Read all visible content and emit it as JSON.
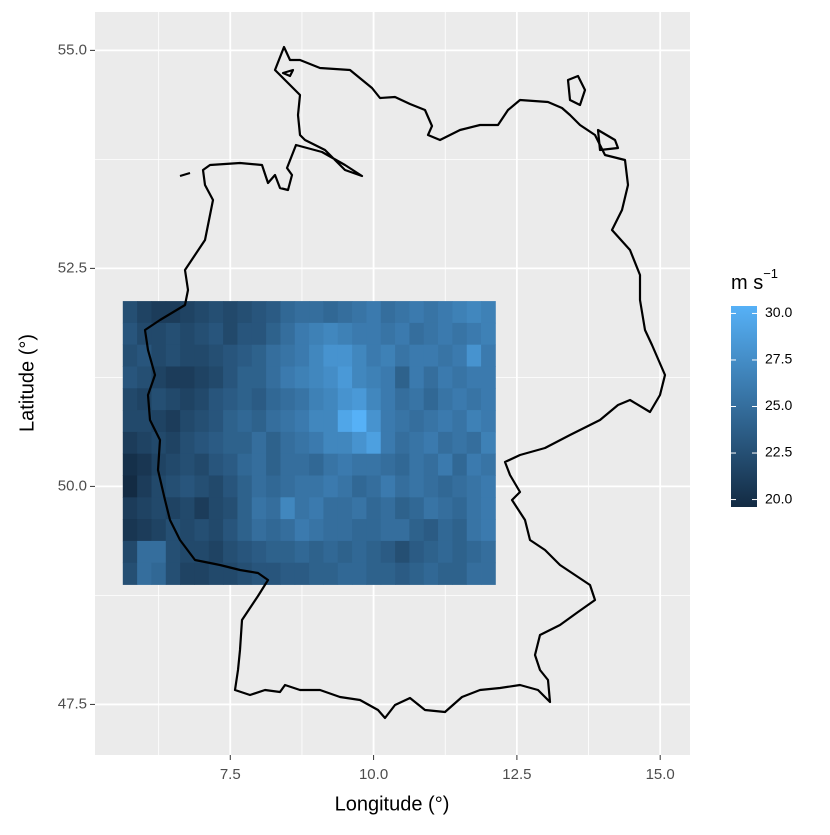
{
  "chart_data": {
    "type": "heatmap",
    "x_label": "Longitude (°)",
    "y_label": "Latitude (°)",
    "legend_title": {
      "base": "m s",
      "sup": "−1"
    },
    "xlim": [
      5.14,
      15.52
    ],
    "ylim": [
      46.92,
      55.44
    ],
    "xticks": [
      7.5,
      {
        "value": 10,
        "label": "10.0"
      },
      12.5,
      {
        "value": 15,
        "label": "15.0"
      }
    ],
    "yticks": [
      47.5,
      {
        "value": 50,
        "label": "50.0"
      },
      52.5,
      {
        "value": 55,
        "label": "55.0"
      }
    ],
    "grid": true,
    "low_color": "#132B43",
    "high_color": "#56B1F7",
    "fill_limits": [
      19.6,
      30.4
    ],
    "fill_ticks": [
      {
        "value": 20,
        "label": "20.0"
      },
      22.5,
      {
        "value": 25,
        "label": "25.0"
      },
      27.5,
      {
        "value": 30,
        "label": "30.0"
      }
    ],
    "x": [
      5.75,
      6.0,
      6.25,
      6.5,
      6.75,
      7.0,
      7.25,
      7.5,
      7.75,
      8.0,
      8.25,
      8.5,
      8.75,
      9.0,
      9.25,
      9.5,
      9.75,
      10.0,
      10.25,
      10.5,
      10.75,
      11.0,
      11.25,
      11.5,
      11.75,
      12.0
    ],
    "y": [
      52.0,
      51.75,
      51.5,
      51.25,
      51.0,
      50.75,
      50.5,
      50.25,
      50.0,
      49.75,
      49.5,
      49.25,
      49.0
    ],
    "z": [
      [
        22.5,
        21.5,
        21,
        21,
        21.5,
        22,
        22.5,
        22,
        22.5,
        23,
        23.5,
        24.5,
        25,
        25,
        24.5,
        25,
        25.5,
        26,
        25,
        25.5,
        26,
        25.5,
        26,
        26.5,
        27,
        26.5
      ],
      [
        23,
        22,
        22,
        22.5,
        22,
        22.5,
        23,
        22,
        23,
        23,
        24,
        25,
        26,
        26.5,
        27,
        26.5,
        26,
        26,
        25.5,
        26,
        25,
        25.5,
        26,
        25.5,
        26,
        26.5
      ],
      [
        22.5,
        23,
        22,
        22.5,
        22,
        22,
        22.5,
        23,
        23.5,
        24,
        25,
        25.5,
        26,
        27,
        28,
        28,
        27,
        26,
        26.5,
        25.5,
        26,
        26,
        25.5,
        26,
        28,
        26
      ],
      [
        23,
        22.5,
        21.5,
        21,
        21,
        21.5,
        22,
        23,
        24,
        24,
        25,
        26,
        26.5,
        27,
        27.5,
        28.5,
        27,
        26.5,
        26,
        24,
        26,
        25,
        26,
        25.5,
        26,
        26
      ],
      [
        22,
        21.5,
        22.5,
        22,
        21.5,
        22,
        23,
        23.5,
        24,
        23.5,
        24.5,
        25,
        25.5,
        26.5,
        27,
        28,
        28.5,
        27,
        26,
        25,
        25.5,
        24.5,
        25.5,
        26,
        25.5,
        26
      ],
      [
        22,
        22,
        21.5,
        21,
        22,
        22.5,
        23,
        24,
        24.5,
        24,
        25,
        25.5,
        26,
        27,
        27,
        29.5,
        30.4,
        28,
        26,
        25.5,
        25,
        25.5,
        26,
        25.5,
        26.5,
        26
      ],
      [
        21,
        21.5,
        22,
        21.5,
        22.5,
        23,
        23.5,
        24,
        24,
        25,
        24,
        25,
        25.5,
        26,
        27,
        27,
        28,
        29,
        26,
        25,
        25.5,
        26,
        25,
        25.5,
        25,
        26.5
      ],
      [
        20,
        20.5,
        21.5,
        22,
        22.5,
        22,
        23,
        23.5,
        24.5,
        25,
        24,
        25,
        25,
        24.5,
        25.5,
        26,
        25.5,
        25.5,
        25,
        24.5,
        25.5,
        25,
        26,
        24.5,
        26,
        25.5
      ],
      [
        19.6,
        21,
        22,
        22.5,
        23,
        22.5,
        22,
        23,
        24,
        25,
        24.5,
        25,
        25.5,
        25.5,
        26,
        25.5,
        24.5,
        25,
        26,
        25,
        25.5,
        25,
        24.5,
        25,
        25.5,
        26
      ],
      [
        21,
        21.5,
        22,
        21.5,
        22,
        21,
        22,
        22.5,
        24,
        25.5,
        25,
        27,
        25.5,
        26,
        25,
        25,
        25.5,
        24.5,
        25,
        24,
        24.5,
        25.5,
        25,
        24.5,
        25.5,
        26
      ],
      [
        20.5,
        21,
        21.5,
        22.5,
        22,
        22.5,
        22,
        23,
        24,
        25,
        24.5,
        25,
        26,
        25.5,
        25,
        25,
        24.5,
        24.5,
        25,
        25,
        24,
        23.5,
        24.5,
        24,
        25.5,
        26
      ],
      [
        22,
        25,
        25,
        22.5,
        22,
        22,
        21.5,
        22.5,
        23,
        23.5,
        24,
        24,
        24.5,
        24,
        24.5,
        24,
        24.5,
        24,
        23.5,
        22.5,
        23.5,
        24,
        24.5,
        24,
        24.5,
        25
      ],
      [
        22.5,
        25,
        24.5,
        22.5,
        21.5,
        21.5,
        22,
        22,
        22.5,
        23,
        23,
        23.5,
        23.5,
        24,
        24,
        24.5,
        24.5,
        24,
        24,
        23.5,
        24,
        24.5,
        24,
        24,
        25,
        25
      ]
    ]
  }
}
